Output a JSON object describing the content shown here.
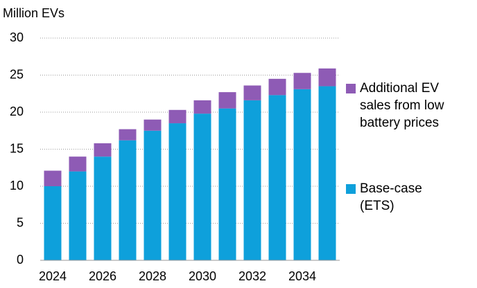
{
  "chart_data": {
    "type": "bar",
    "stacked": true,
    "y_axis_label": "Million EVs",
    "categories": [
      "2024",
      null,
      "2026",
      null,
      "2028",
      null,
      "2030",
      null,
      "2032",
      null,
      "2034",
      null
    ],
    "series": [
      {
        "name": "Base-case (ETS)",
        "color": "#0ea0db",
        "values": [
          10,
          12,
          14,
          16.2,
          17.5,
          18.5,
          19.8,
          20.5,
          21.6,
          22.3,
          23.1,
          23.5
        ]
      },
      {
        "name": "Additional EV sales from low battery prices",
        "color": "#8e5bb5",
        "values": [
          2.1,
          2.0,
          1.8,
          1.5,
          1.5,
          1.8,
          1.8,
          2.2,
          2.0,
          2.2,
          2.2,
          2.4
        ]
      }
    ],
    "ylim": [
      0,
      30
    ],
    "yticks": [
      0,
      5,
      10,
      15,
      20,
      25,
      30
    ],
    "grid": true
  }
}
